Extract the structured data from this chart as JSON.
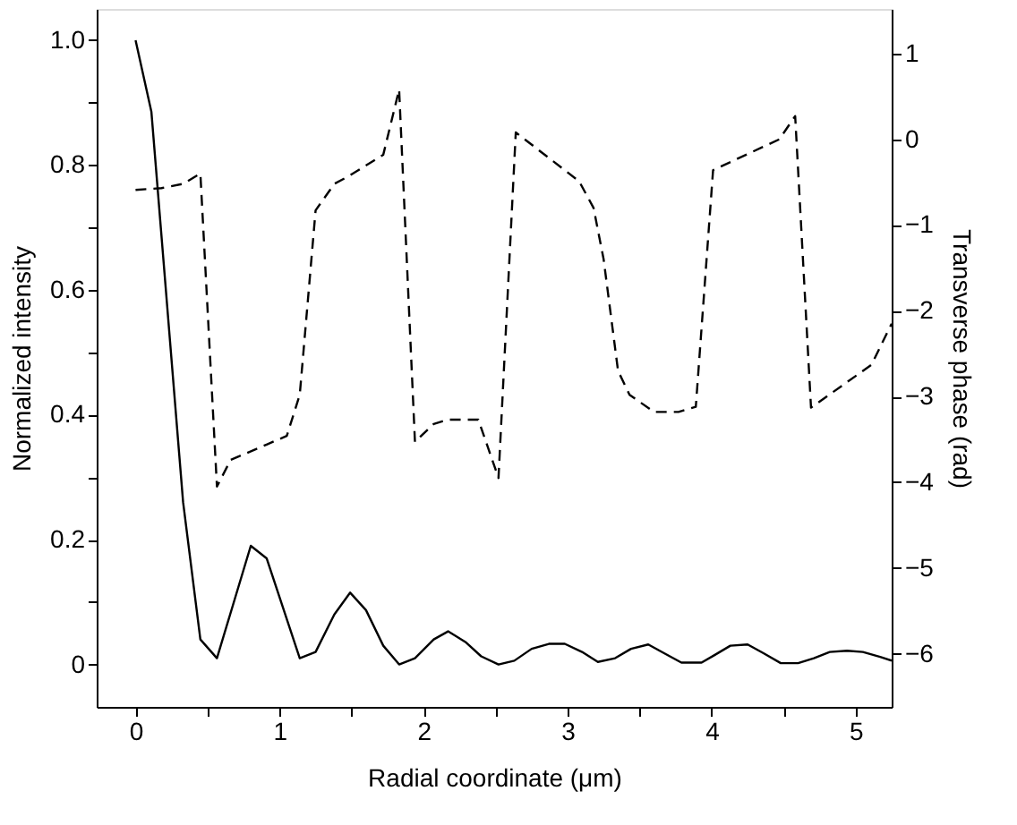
{
  "chart_data": {
    "type": "line",
    "xlabel": "Radial coordinate (μm)",
    "ylabel": "Normalized intensity",
    "y2label": "Transverse phase (rad)",
    "xlim": [
      -0.27,
      5.25
    ],
    "xticks": [
      0,
      {
        "value": 0.5,
        "label": null
      },
      1,
      {
        "value": 1.5,
        "label": null
      },
      2,
      {
        "value": 2.5,
        "label": null
      },
      3,
      {
        "value": 3.5,
        "label": null
      },
      4,
      {
        "value": 4.5,
        "label": null
      },
      5
    ],
    "ylim": [
      -0.068,
      1.05
    ],
    "yticks": [
      0,
      {
        "value": 0.1,
        "label": null
      },
      0.2,
      {
        "value": 0.3,
        "label": null
      },
      0.4,
      {
        "value": 0.5,
        "label": null
      },
      0.6,
      {
        "value": 0.7,
        "label": null
      },
      0.8,
      {
        "value": 0.9,
        "label": null
      },
      {
        "value": 1,
        "label": "1.0"
      }
    ],
    "y2lim": [
      -6.62,
      1.52
    ],
    "y2ticks": [
      -6,
      -5,
      -4,
      -3,
      -2,
      -1,
      0,
      1
    ],
    "grid": false,
    "marker": "none",
    "series": [
      {
        "color": "#000000",
        "line_style": "solid",
        "x": [
          0,
          0.11,
          0.33,
          0.45,
          0.565,
          0.8,
          0.91,
          1.14,
          1.25,
          1.38,
          1.49,
          1.6,
          1.72,
          1.83,
          1.94,
          2.07,
          2.17,
          2.29,
          2.4,
          2.52,
          2.63,
          2.75,
          2.87,
          2.98,
          3.1,
          3.21,
          3.33,
          3.44,
          3.56,
          3.67,
          3.79,
          3.93,
          4.02,
          4.13,
          4.25,
          4.36,
          4.48,
          4.6,
          4.71,
          4.82,
          4.94,
          5.05,
          5.17,
          5.25
        ],
        "values": [
          1.0,
          0.885,
          0.26,
          0.04,
          0.01,
          0.19,
          0.17,
          0.01,
          0.02,
          0.08,
          0.115,
          0.087,
          0.03,
          0.0,
          0.01,
          0.04,
          0.053,
          0.036,
          0.013,
          0.0,
          0.006,
          0.025,
          0.033,
          0.033,
          0.02,
          0.004,
          0.01,
          0.025,
          0.032,
          0.018,
          0.003,
          0.003,
          0.015,
          0.03,
          0.032,
          0.018,
          0.002,
          0.002,
          0.01,
          0.02,
          0.022,
          0.02,
          0.012,
          0.006
        ]
      },
      {
        "color": "#000000",
        "line_style": "dashed",
        "axis": "y2",
        "x": [
          0,
          0.18,
          0.33,
          0.45,
          0.565,
          0.66,
          0.91,
          1.05,
          1.14,
          1.25,
          1.38,
          1.49,
          1.72,
          1.83,
          1.94,
          2.07,
          2.17,
          2.38,
          2.52,
          2.64,
          3.08,
          3.18,
          3.25,
          3.35,
          3.43,
          3.6,
          3.77,
          3.89,
          4.01,
          4.47,
          4.58,
          4.69,
          5.11,
          5.25
        ],
        "values": [
          -0.59,
          -0.57,
          -0.52,
          -0.4,
          -4.05,
          -3.74,
          -3.56,
          -3.46,
          -2.98,
          -0.83,
          -0.52,
          -0.42,
          -0.18,
          0.58,
          -3.53,
          -3.32,
          -3.27,
          -3.27,
          -3.95,
          0.08,
          -0.49,
          -0.8,
          -1.4,
          -2.7,
          -2.98,
          -3.18,
          -3.18,
          -3.12,
          -0.36,
          0.0,
          0.27,
          -3.13,
          -2.63,
          -2.15
        ]
      }
    ]
  }
}
